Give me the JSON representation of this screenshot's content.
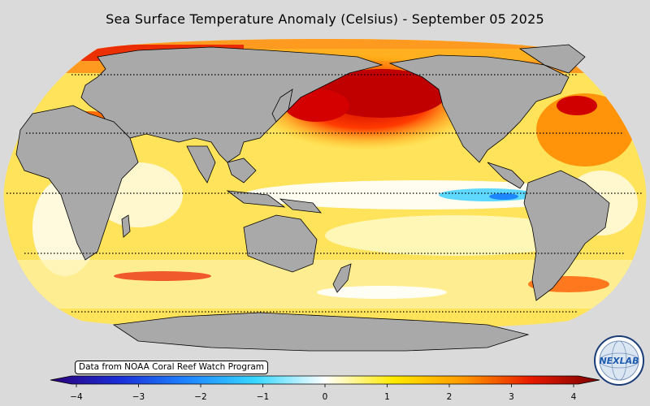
{
  "title": "Sea Surface Temperature Anomaly (Celsius) - September 05 2025",
  "source_note": "Data from NOAA Coral Reef Watch Program",
  "logo": {
    "text": "NEXLAB",
    "icon": "nexlab-globe-logo"
  },
  "colorbar": {
    "min": -4,
    "max": 4,
    "ticks": [
      "−4",
      "−3",
      "−2",
      "−1",
      "0",
      "1",
      "2",
      "3",
      "4"
    ],
    "colors": [
      "#2b0078",
      "#1a2ed8",
      "#1e86ff",
      "#38d8ff",
      "#ffffff",
      "#ffea00",
      "#ff9a00",
      "#e81a00",
      "#7a0000"
    ],
    "extend": "both"
  },
  "map": {
    "projection": "Robinson (Pacific-centered)",
    "land_color": "#a9a9a9",
    "background": "#dadada",
    "graticule": "dotted latitude lines",
    "central_longitude": 180
  }
}
